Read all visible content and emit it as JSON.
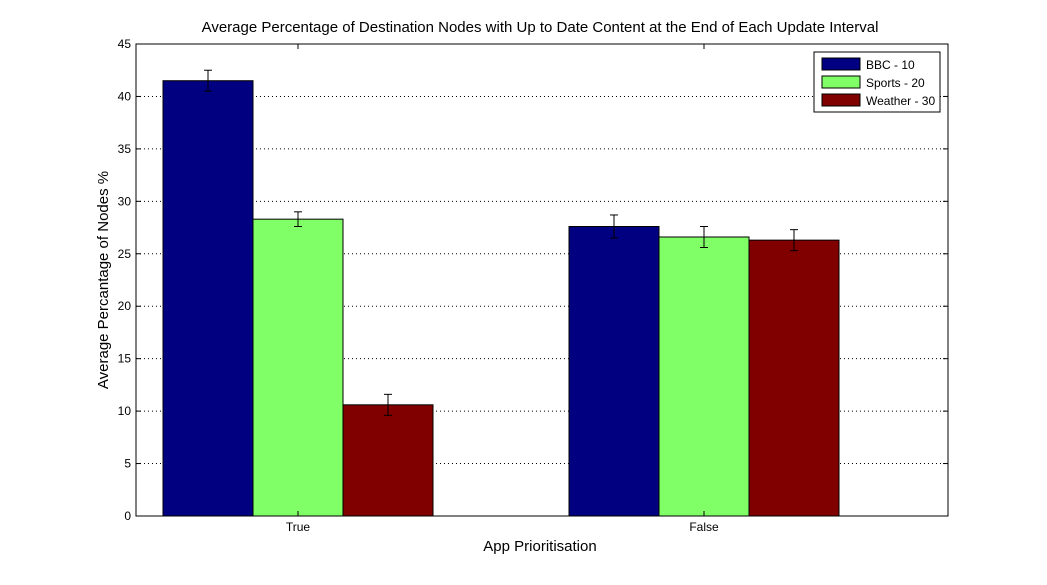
{
  "chart_data": {
    "type": "bar",
    "title": "Average Percentage of Destination Nodes with Up to Date Content at the End of Each Update Interval",
    "xlabel": "App Prioritisation",
    "ylabel": "Average Percantage of Nodes %",
    "categories": [
      "True",
      "False"
    ],
    "ylim": [
      0,
      45
    ],
    "yticks": [
      0,
      5,
      10,
      15,
      20,
      25,
      30,
      35,
      40,
      45
    ],
    "grid": "horizontal-dotted",
    "legend_position": "top-right",
    "series": [
      {
        "name": "BBC - 10",
        "color": "#000080",
        "values": [
          41.5,
          27.6
        ],
        "errors": [
          1.0,
          1.1
        ]
      },
      {
        "name": "Sports - 20",
        "color": "#80ff66",
        "values": [
          28.3,
          26.6
        ],
        "errors": [
          0.7,
          1.0
        ]
      },
      {
        "name": "Weather - 30",
        "color": "#800000",
        "values": [
          10.6,
          26.3
        ],
        "errors": [
          1.0,
          1.0
        ]
      }
    ]
  }
}
